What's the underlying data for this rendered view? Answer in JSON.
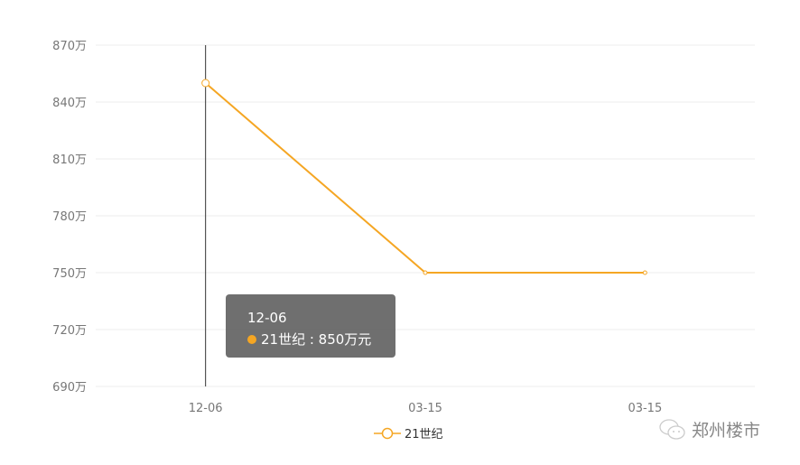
{
  "chart_data": {
    "type": "line",
    "categories": [
      "12-06",
      "03-15",
      "03-15"
    ],
    "series": [
      {
        "name": "21世纪",
        "values": [
          850,
          750,
          750
        ],
        "color": "#f5a623"
      }
    ],
    "yticks": [
      "690万",
      "720万",
      "750万",
      "780万",
      "810万",
      "840万",
      "870万"
    ],
    "ylim": [
      690,
      870
    ],
    "ytick_step": 30,
    "grid": true,
    "legend": "bottom-center",
    "highlighted_index": 0
  },
  "tooltip": {
    "title": "12-06",
    "series_label": "21世纪 : 850万元"
  },
  "legend": {
    "label": "21世纪"
  },
  "watermark": {
    "text": "郑州楼市",
    "icon": "wechat-icon"
  }
}
